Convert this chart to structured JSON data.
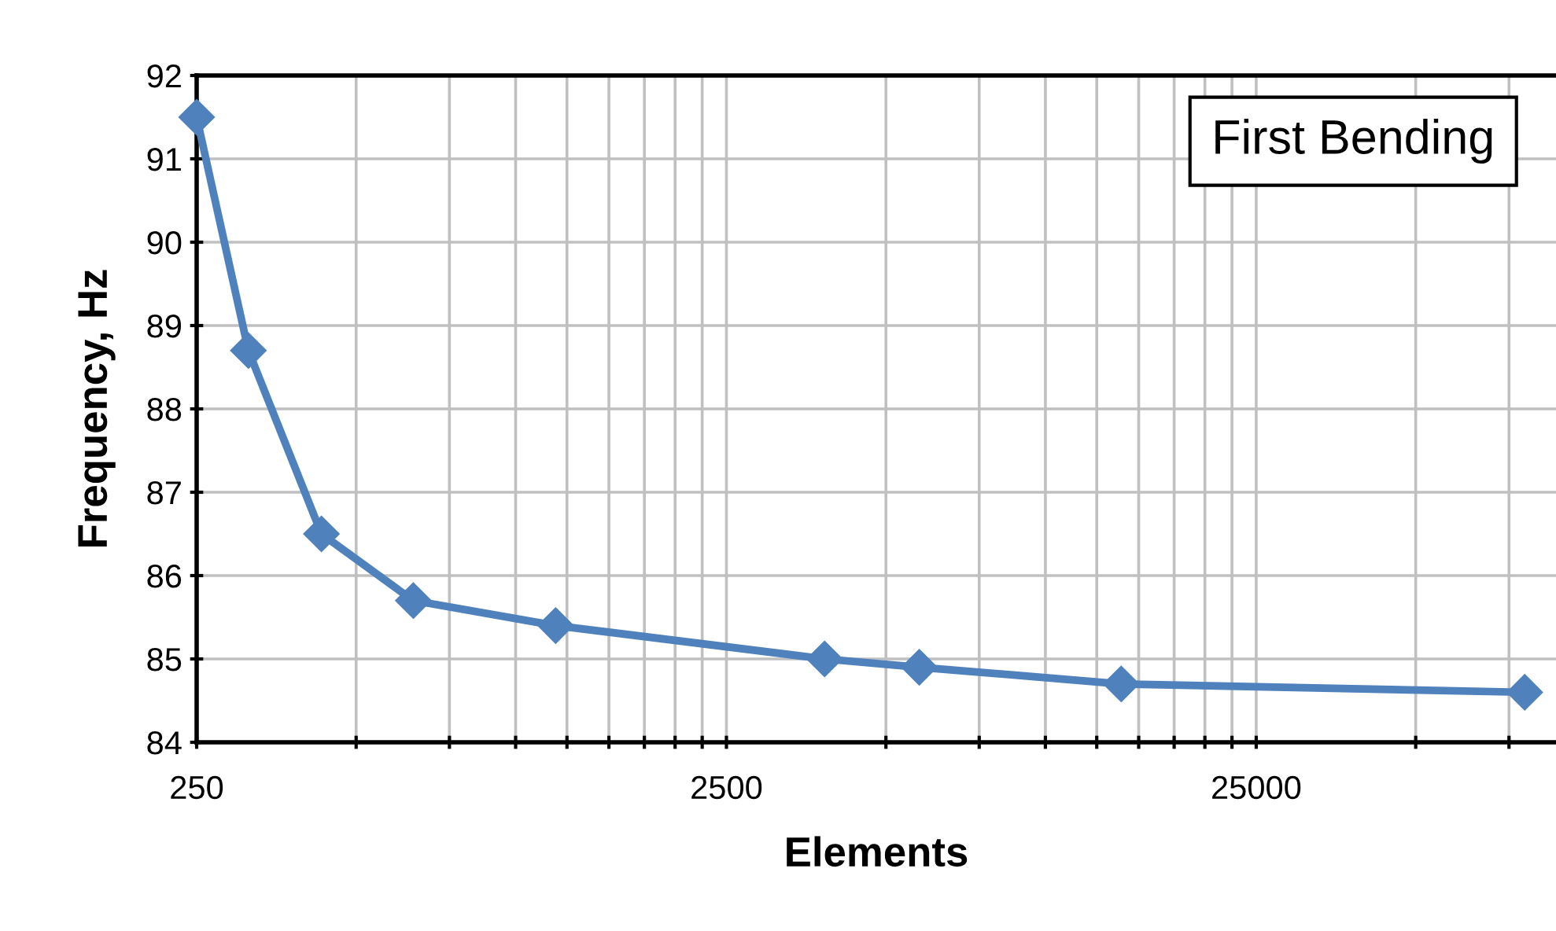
{
  "chart_data": {
    "type": "line",
    "xlabel": "Elements",
    "ylabel": "Frequency, Hz",
    "annotations": [
      "First Bending"
    ],
    "x": [
      250,
      313,
      430,
      641,
      1190,
      3830,
      5780,
      13900,
      80300
    ],
    "series": [
      {
        "color": "#4f81bd",
        "values": [
          91.5,
          88.7,
          86.5,
          85.7,
          85.4,
          85.0,
          84.9,
          84.7,
          84.6
        ]
      }
    ],
    "log": "x",
    "xlim": [
      250,
      92000
    ],
    "ylim": [
      84,
      92
    ],
    "xticks": [
      250,
      {
        "value": 500,
        "label": null
      },
      {
        "value": 750,
        "label": null
      },
      {
        "value": 1000,
        "label": null
      },
      {
        "value": 1250,
        "label": null
      },
      {
        "value": 1500,
        "label": null
      },
      {
        "value": 1750,
        "label": null
      },
      {
        "value": 2000,
        "label": null
      },
      {
        "value": 2250,
        "label": null
      },
      2500,
      {
        "value": 5000,
        "label": null
      },
      {
        "value": 7500,
        "label": null
      },
      {
        "value": 10000,
        "label": null
      },
      {
        "value": 12500,
        "label": null
      },
      {
        "value": 15000,
        "label": null
      },
      {
        "value": 17500,
        "label": null
      },
      {
        "value": 20000,
        "label": null
      },
      {
        "value": 22500,
        "label": null
      },
      25000,
      {
        "value": 50000,
        "label": null
      },
      {
        "value": 75000,
        "label": null
      }
    ],
    "yticks": [
      84,
      85,
      86,
      87,
      88,
      89,
      90,
      91,
      92
    ],
    "grid": true,
    "marker": "diamond",
    "line_style": "solid"
  }
}
